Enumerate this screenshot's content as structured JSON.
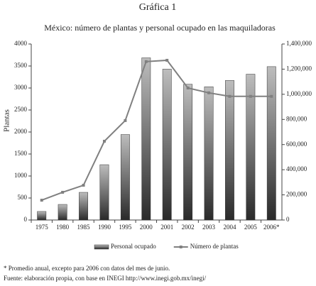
{
  "header": "Gráfica 1",
  "chart_data": {
    "type": "bar-line",
    "title": "México: número de plantas y personal ocupado en las maquiladoras",
    "ylabel": "Plantas",
    "categories": [
      "1975",
      "1980",
      "1985",
      "1990",
      "1995",
      "2000",
      "2001",
      "2002",
      "2003",
      "2004",
      "2005",
      "2006*"
    ],
    "series": [
      {
        "name": "Personal ocupado",
        "type": "bar",
        "axis": "y2",
        "color": "#bdbdbd",
        "values": [
          68000,
          124000,
          220000,
          440000,
          680000,
          1290000,
          1200000,
          1080000,
          1060000,
          1110000,
          1160000,
          1220000
        ]
      },
      {
        "name": "Número de plantas",
        "type": "line",
        "axis": "y",
        "color": "#808080",
        "values": [
          450,
          630,
          790,
          1790,
          2260,
          3600,
          3630,
          3000,
          2890,
          2810,
          2810,
          2810
        ]
      }
    ],
    "ylim": [
      0,
      4000
    ],
    "yticks": [
      0,
      500,
      1000,
      1500,
      2000,
      2500,
      3000,
      3500,
      4000
    ],
    "y2lim": [
      0,
      1400000
    ],
    "y2ticks": [
      0,
      {
        "value": 200000,
        "label": "200,000"
      },
      {
        "value": 400000,
        "label": "400,000"
      },
      {
        "value": 600000,
        "label": "600,000"
      },
      {
        "value": 800000,
        "label": "800,000"
      },
      {
        "value": 1000000,
        "label": "1,000,000"
      },
      {
        "value": 1200000,
        "label": "1,200,000"
      },
      {
        "value": 1400000,
        "label": "1,400,000"
      }
    ],
    "legend": "bottom"
  },
  "notes": [
    "* Promedio anual, excepto para 2006 con datos del mes de junio.",
    "Fuente: elaboración propia, con base en INEGI http://www.inegi.gob.mx/inegi/"
  ]
}
